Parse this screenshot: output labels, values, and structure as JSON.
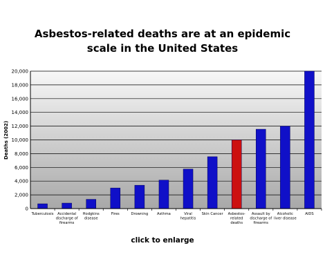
{
  "chart_data": {
    "type": "bar",
    "title_lines": [
      "Asbestos-related deaths are at an epidemic",
      "scale in the United States"
    ],
    "ylabel": "Deaths (2002)",
    "xlabel": "",
    "ylim": [
      0,
      20000
    ],
    "yticks": [
      0,
      2000,
      4000,
      6000,
      8000,
      10000,
      12000,
      14000,
      16000,
      18000,
      20000
    ],
    "ytick_labels": [
      "0",
      "2,000",
      "4,000",
      "6,000",
      "8,000",
      "10,000",
      "12,000",
      "14,000",
      "16,000",
      "18,000",
      "20,000"
    ],
    "grid": true,
    "categories": [
      [
        "Tuberculosis"
      ],
      [
        "Accidental",
        "discharge of",
        "firearms"
      ],
      [
        "Hodgkins",
        "disease"
      ],
      [
        "Fires"
      ],
      [
        "Drowning"
      ],
      [
        "Asthma"
      ],
      [
        "Viral",
        "hepatitis"
      ],
      [
        "Skin Cancer"
      ],
      [
        "Asbestos-",
        "related",
        "deaths"
      ],
      [
        "Assault by",
        "discharge of",
        "firearms"
      ],
      [
        "Alcoholic",
        "liver disease"
      ],
      [
        "AIDS"
      ]
    ],
    "values": [
      700,
      800,
      1350,
      3000,
      3400,
      4150,
      5750,
      7550,
      10000,
      11550,
      12000,
      20000
    ],
    "highlight_index": 8,
    "colors": {
      "bar": "#1010c8",
      "highlight": "#cc1010",
      "bar_edge": "#000055",
      "plot_top": "#f7f7f7",
      "plot_bottom": "#a8a8a8",
      "gridline": "#000000"
    }
  },
  "caption": "click to enlarge"
}
